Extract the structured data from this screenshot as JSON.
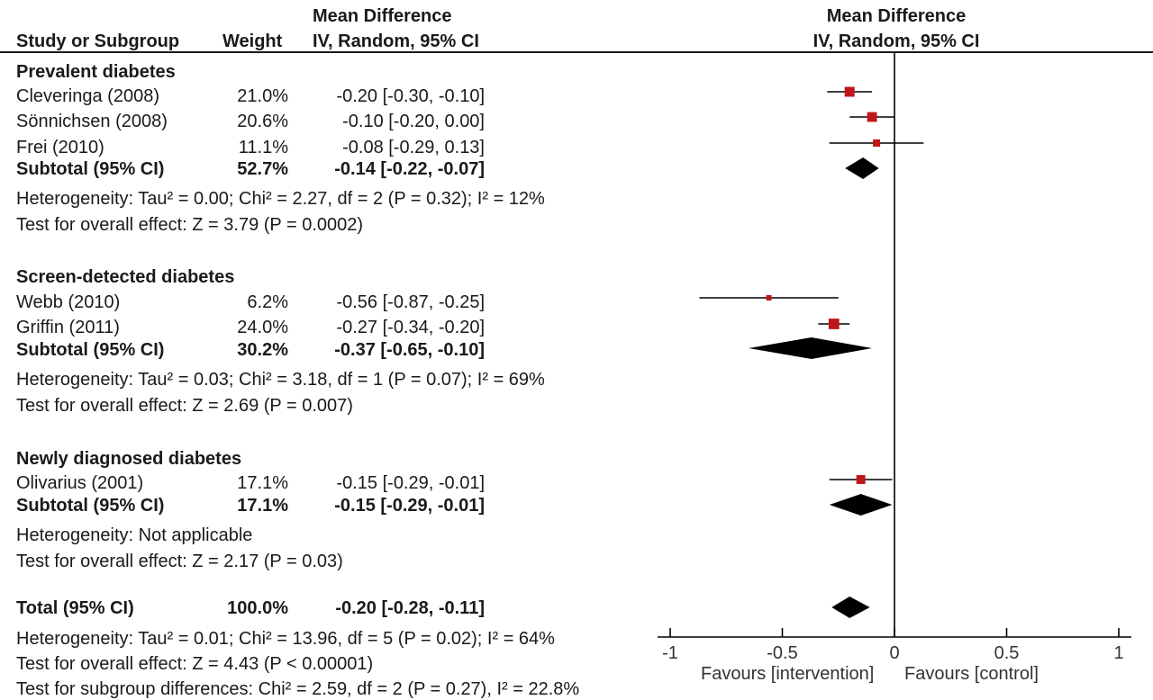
{
  "header": {
    "col_study": "Study or Subgroup",
    "col_weight": "Weight",
    "col_md_line1": "Mean Difference",
    "col_md_line2": "IV, Random, 95% CI",
    "plot_title_line1": "Mean Difference",
    "plot_title_line2": "IV, Random, 95% CI"
  },
  "groups": [
    {
      "name": "Prevalent diabetes",
      "studies": [
        {
          "study": "Cleveringa (2008)",
          "weight": "21.0%",
          "ci_text": "-0.20 [-0.30, -0.10]"
        },
        {
          "study": "Sönnichsen (2008)",
          "weight": "20.6%",
          "ci_text": "-0.10 [-0.20, 0.00]"
        },
        {
          "study": "Frei (2010)",
          "weight": "11.1%",
          "ci_text": "-0.08 [-0.29, 0.13]"
        }
      ],
      "subtotal": {
        "label": "Subtotal (95% CI)",
        "weight": "52.7%",
        "ci_text": "-0.14 [-0.22, -0.07]"
      },
      "heterogeneity": "Heterogeneity: Tau² = 0.00; Chi² = 2.27, df = 2 (P = 0.32); I² = 12%",
      "overall": "Test for overall effect: Z = 3.79 (P = 0.0002)"
    },
    {
      "name": "Screen-detected diabetes",
      "studies": [
        {
          "study": "Webb (2010)",
          "weight": "6.2%",
          "ci_text": "-0.56 [-0.87, -0.25]"
        },
        {
          "study": "Griffin (2011)",
          "weight": "24.0%",
          "ci_text": "-0.27 [-0.34, -0.20]"
        }
      ],
      "subtotal": {
        "label": "Subtotal (95% CI)",
        "weight": "30.2%",
        "ci_text": "-0.37 [-0.65, -0.10]"
      },
      "heterogeneity": "Heterogeneity: Tau² = 0.03; Chi² = 3.18, df = 1 (P = 0.07); I² = 69%",
      "overall": "Test for overall effect: Z = 2.69 (P = 0.007)"
    },
    {
      "name": "Newly diagnosed diabetes",
      "studies": [
        {
          "study": "Olivarius (2001)",
          "weight": "17.1%",
          "ci_text": "-0.15 [-0.29, -0.01]"
        }
      ],
      "subtotal": {
        "label": "Subtotal (95% CI)",
        "weight": "17.1%",
        "ci_text": "-0.15 [-0.29, -0.01]"
      },
      "heterogeneity": "Heterogeneity: Not applicable",
      "overall": "Test for overall effect: Z = 2.17 (P = 0.03)"
    }
  ],
  "total": {
    "label": "Total (95% CI)",
    "weight": "100.0%",
    "ci_text": "-0.20 [-0.28, -0.11]",
    "heterogeneity": "Heterogeneity: Tau² = 0.01; Chi² = 13.96, df = 5 (P = 0.02); I² = 64%",
    "overall": "Test for overall effect: Z = 4.43 (P < 0.00001)",
    "subgroup_diff": "Test for subgroup differences: Chi² = 2.59, df = 2 (P = 0.27), I² = 22.8%"
  },
  "axis": {
    "favours_left": "Favours [intervention]",
    "favours_right": "Favours [control]"
  },
  "colors": {
    "marker": "#c0161b",
    "diamond": "#000000",
    "text": "#1a1a1a"
  },
  "chart_data": {
    "type": "forest",
    "xlim": [
      -1,
      1
    ],
    "ticks": [
      -1,
      -0.5,
      0,
      0.5,
      1
    ],
    "tick_labels": [
      "-1",
      "-0.5",
      "0",
      "0.5",
      "1"
    ],
    "studies": [
      {
        "name": "Cleveringa (2008)",
        "group": "Prevalent diabetes",
        "weight": 21.0,
        "md": -0.2,
        "lo": -0.3,
        "hi": -0.1
      },
      {
        "name": "Sönnichsen (2008)",
        "group": "Prevalent diabetes",
        "weight": 20.6,
        "md": -0.1,
        "lo": -0.2,
        "hi": 0.0
      },
      {
        "name": "Frei (2010)",
        "group": "Prevalent diabetes",
        "weight": 11.1,
        "md": -0.08,
        "lo": -0.29,
        "hi": 0.13
      },
      {
        "name": "Webb (2010)",
        "group": "Screen-detected diabetes",
        "weight": 6.2,
        "md": -0.56,
        "lo": -0.87,
        "hi": -0.25
      },
      {
        "name": "Griffin (2011)",
        "group": "Screen-detected diabetes",
        "weight": 24.0,
        "md": -0.27,
        "lo": -0.34,
        "hi": -0.2
      },
      {
        "name": "Olivarius (2001)",
        "group": "Newly diagnosed diabetes",
        "weight": 17.1,
        "md": -0.15,
        "lo": -0.29,
        "hi": -0.01
      }
    ],
    "subtotals": [
      {
        "group": "Prevalent diabetes",
        "weight": 52.7,
        "md": -0.14,
        "lo": -0.22,
        "hi": -0.07
      },
      {
        "group": "Screen-detected diabetes",
        "weight": 30.2,
        "md": -0.37,
        "lo": -0.65,
        "hi": -0.1
      },
      {
        "group": "Newly diagnosed diabetes",
        "weight": 17.1,
        "md": -0.15,
        "lo": -0.29,
        "hi": -0.01
      }
    ],
    "total": {
      "weight": 100.0,
      "md": -0.2,
      "lo": -0.28,
      "hi": -0.11
    }
  }
}
